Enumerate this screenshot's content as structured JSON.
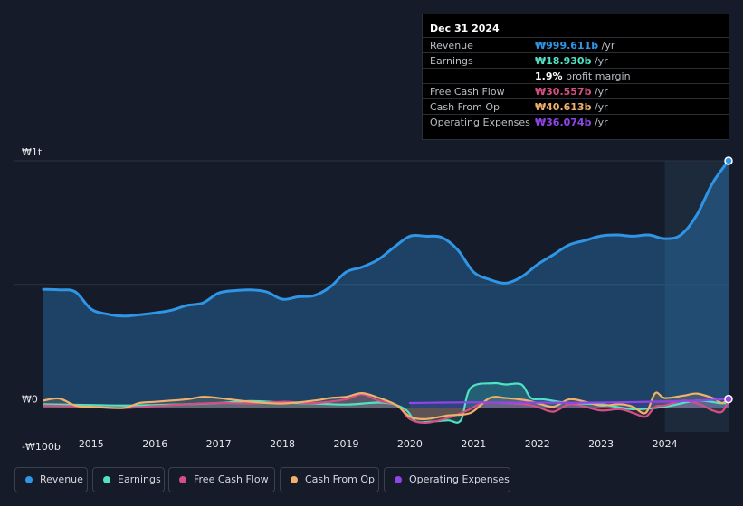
{
  "chart_data": {
    "type": "area",
    "ylim": [
      -100,
      1000
    ],
    "y_axis_labels": [
      "₩1t",
      "₩0",
      "-₩100b"
    ],
    "x_ticks": [
      "2015",
      "2016",
      "2017",
      "2018",
      "2019",
      "2020",
      "2021",
      "2022",
      "2023",
      "2024"
    ],
    "forecast_shade_from": 2024,
    "grid": true,
    "series": [
      {
        "name": "Revenue",
        "color": "#2f95e6",
        "x": [
          2014.25,
          2014.5,
          2014.75,
          2015,
          2015.25,
          2015.5,
          2015.75,
          2016,
          2016.25,
          2016.5,
          2016.75,
          2017,
          2017.25,
          2017.5,
          2017.75,
          2018,
          2018.25,
          2018.5,
          2018.75,
          2019,
          2019.25,
          2019.5,
          2019.75,
          2020,
          2020.25,
          2020.5,
          2020.75,
          2021,
          2021.25,
          2021.5,
          2021.75,
          2022,
          2022.25,
          2022.5,
          2022.75,
          2023,
          2023.25,
          2023.5,
          2023.75,
          2024,
          2024.25,
          2024.5,
          2024.75,
          2025
        ],
        "values": [
          480,
          478,
          470,
          400,
          380,
          372,
          377,
          385,
          395,
          415,
          425,
          465,
          475,
          478,
          470,
          440,
          450,
          455,
          490,
          550,
          570,
          600,
          650,
          695,
          695,
          690,
          640,
          550,
          520,
          505,
          530,
          580,
          620,
          660,
          678,
          696,
          700,
          695,
          700,
          685,
          700,
          780,
          910,
          1000
        ]
      },
      {
        "name": "Earnings",
        "color": "#4fe3c4",
        "x": [
          2014.25,
          2015,
          2015.5,
          2016,
          2016.5,
          2017,
          2017.5,
          2018,
          2018.5,
          2019,
          2019.5,
          2019.75,
          2019.95,
          2020.1,
          2020.35,
          2020.6,
          2020.8,
          2020.95,
          2021.3,
          2021.5,
          2021.75,
          2021.9,
          2022.1,
          2022.5,
          2023,
          2023.5,
          2024,
          2024.5,
          2024.85,
          2025
        ],
        "values": [
          15,
          12,
          10,
          12,
          15,
          20,
          28,
          22,
          18,
          14,
          22,
          15,
          -10,
          -55,
          -55,
          -50,
          -50,
          80,
          100,
          95,
          95,
          40,
          35,
          20,
          15,
          -5,
          5,
          30,
          20,
          19
        ]
      },
      {
        "name": "Free Cash Flow",
        "color": "#d64f84",
        "x": [
          2014.25,
          2015,
          2015.5,
          2016,
          2016.5,
          2017,
          2017.5,
          2018,
          2018.5,
          2019,
          2019.25,
          2019.5,
          2019.8,
          2020,
          2020.25,
          2020.6,
          2020.9,
          2021.15,
          2021.5,
          2021.8,
          2022,
          2022.25,
          2022.5,
          2022.75,
          2023,
          2023.3,
          2023.5,
          2023.7,
          2023.85,
          2024,
          2024.3,
          2024.55,
          2024.75,
          2024.9,
          2025
        ],
        "values": [
          10,
          5,
          0,
          8,
          15,
          20,
          18,
          25,
          20,
          35,
          55,
          30,
          10,
          -45,
          -60,
          -40,
          -10,
          20,
          20,
          15,
          5,
          -15,
          15,
          5,
          -10,
          -5,
          -20,
          -35,
          5,
          10,
          30,
          15,
          -10,
          -15,
          31
        ]
      },
      {
        "name": "Cash From Op",
        "color": "#f0b26b",
        "x": [
          2014.25,
          2014.5,
          2014.75,
          2015,
          2015.5,
          2015.75,
          2016,
          2016.5,
          2016.75,
          2017,
          2017.5,
          2018,
          2018.5,
          2018.75,
          2019,
          2019.25,
          2019.5,
          2019.8,
          2020,
          2020.25,
          2020.6,
          2020.95,
          2021.25,
          2021.5,
          2021.8,
          2022,
          2022.25,
          2022.5,
          2022.75,
          2023,
          2023.3,
          2023.5,
          2023.7,
          2023.85,
          2024,
          2024.3,
          2024.5,
          2024.75,
          2024.9,
          2025
        ],
        "values": [
          30,
          38,
          10,
          5,
          0,
          20,
          25,
          35,
          45,
          40,
          25,
          18,
          30,
          40,
          45,
          60,
          42,
          10,
          -35,
          -45,
          -30,
          -20,
          40,
          40,
          32,
          20,
          5,
          35,
          25,
          10,
          15,
          5,
          -20,
          60,
          40,
          50,
          58,
          40,
          20,
          41
        ]
      },
      {
        "name": "Operating Expenses",
        "color": "#8f45e8",
        "x": [
          2020,
          2020.5,
          2021,
          2021.5,
          2022,
          2022.5,
          2023,
          2023.5,
          2024,
          2024.5,
          2025
        ],
        "values": [
          20,
          22,
          23,
          22,
          22,
          21,
          22,
          24,
          26,
          30,
          36
        ]
      }
    ]
  },
  "tooltip": {
    "date": "Dec 31 2024",
    "rows": [
      {
        "label": "Revenue",
        "value": "₩999.611b",
        "unit": "/yr",
        "color": "#2f95e6"
      },
      {
        "label": "Earnings",
        "value": "₩18.930b",
        "unit": "/yr",
        "color": "#4fe3c4"
      },
      {
        "label": "",
        "value": "1.9%",
        "unit": "profit margin",
        "color": "#ffffff"
      },
      {
        "label": "Free Cash Flow",
        "value": "₩30.557b",
        "unit": "/yr",
        "color": "#d64f84"
      },
      {
        "label": "Cash From Op",
        "value": "₩40.613b",
        "unit": "/yr",
        "color": "#f0b26b"
      },
      {
        "label": "Operating Expenses",
        "value": "₩36.074b",
        "unit": "/yr",
        "color": "#8f45e8"
      }
    ]
  },
  "legend": [
    {
      "label": "Revenue",
      "color": "#2f95e6"
    },
    {
      "label": "Earnings",
      "color": "#4fe3c4"
    },
    {
      "label": "Free Cash Flow",
      "color": "#d64f84"
    },
    {
      "label": "Cash From Op",
      "color": "#f0b26b"
    },
    {
      "label": "Operating Expenses",
      "color": "#8f45e8"
    }
  ]
}
